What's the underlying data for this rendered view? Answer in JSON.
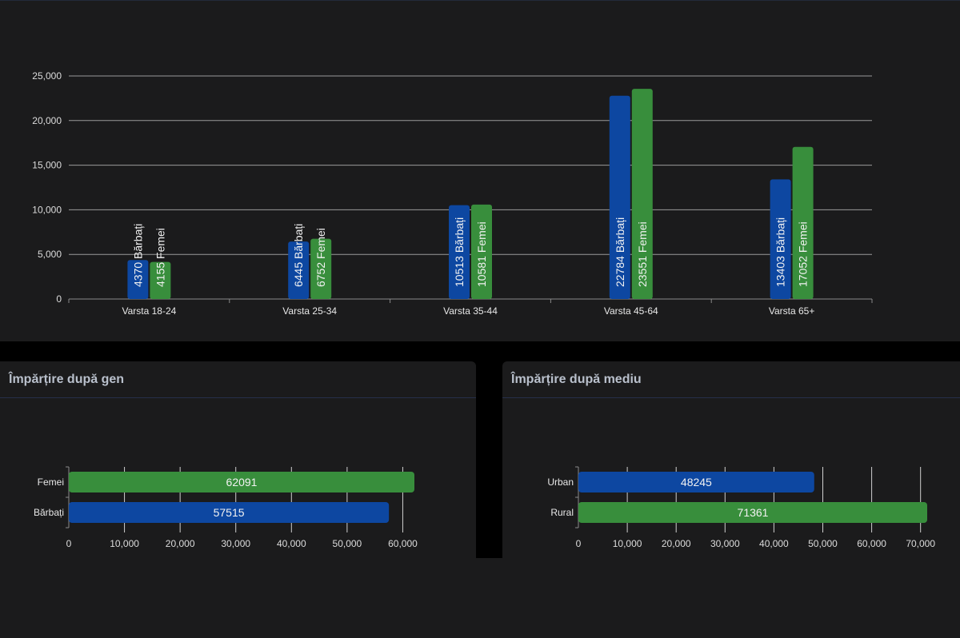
{
  "colors": {
    "men": "#0d47a1",
    "women": "#388e3c",
    "urban": "#0d47a1",
    "rural": "#388e3c"
  },
  "chart_data": [
    {
      "id": "age",
      "type": "bar",
      "title": "",
      "categories": [
        "Varsta 18-24",
        "Varsta 25-34",
        "Varsta 35-44",
        "Varsta 45-64",
        "Varsta 65+"
      ],
      "series": [
        {
          "name": "Bărbați",
          "values": [
            4370,
            6445,
            10513,
            22784,
            13403
          ]
        },
        {
          "name": "Femei",
          "values": [
            4155,
            6752,
            10581,
            23551,
            17052
          ]
        }
      ],
      "ylim": [
        0,
        25000
      ],
      "yticks": [
        "0",
        "5,000",
        "10,000",
        "15,000",
        "20,000",
        "25,000"
      ],
      "grid": true
    },
    {
      "id": "gender",
      "type": "bar",
      "orientation": "horizontal",
      "title": "Împărțire după gen",
      "categories": [
        "Femei",
        "Bărbați"
      ],
      "values": [
        62091,
        57515
      ],
      "xlim": [
        0,
        62091
      ],
      "xticks": [
        "0",
        "10,000",
        "20,000",
        "30,000",
        "40,000",
        "50,000",
        "60,000"
      ],
      "grid": true
    },
    {
      "id": "env",
      "type": "bar",
      "orientation": "horizontal",
      "title": "Împărțire după mediu",
      "categories": [
        "Urban",
        "Rural"
      ],
      "values": [
        48245,
        71361
      ],
      "xlim": [
        0,
        71361
      ],
      "xticks": [
        "0",
        "10,000",
        "20,000",
        "30,000",
        "40,000",
        "50,000",
        "60,000",
        "70,000"
      ],
      "grid": true
    }
  ]
}
